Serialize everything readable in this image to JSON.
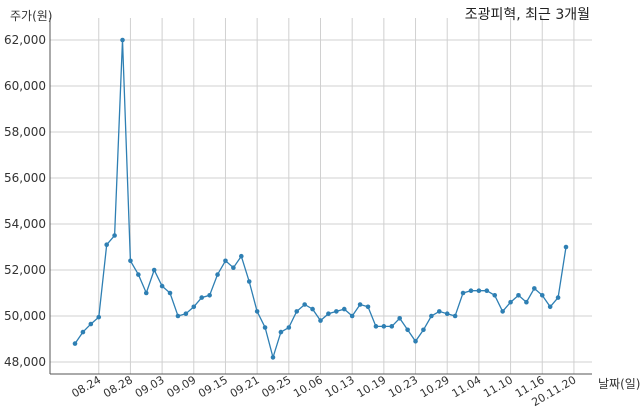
{
  "chart_data": {
    "type": "line",
    "title": "조광피혁, 최근 3개월",
    "ylabel": "주가(원)",
    "xlabel": "날짜(일)",
    "ylim": [
      48000,
      62500
    ],
    "yticks": [
      48000,
      50000,
      52000,
      54000,
      56000,
      58000,
      60000,
      62000
    ],
    "ytick_labels": [
      "48,000",
      "50,000",
      "52,000",
      "54,000",
      "56,000",
      "58,000",
      "60,000",
      "62,000"
    ],
    "grid": true,
    "color": "#2e7fb3",
    "x_tick_labels": [
      "08.24",
      "08.28",
      "09.03",
      "09.09",
      "09.15",
      "09.21",
      "09.25",
      "10.06",
      "10.13",
      "10.19",
      "10.23",
      "10.29",
      "11.04",
      "11.10",
      "11.16",
      "20.11.20"
    ],
    "x_tick_index": [
      3,
      7,
      11,
      15,
      19,
      23,
      27,
      31,
      35,
      39,
      43,
      47,
      51,
      55,
      59,
      63
    ],
    "series": [
      {
        "values": [
          48800,
          49300,
          49650,
          49950,
          53100,
          53500,
          62000,
          52400,
          51800,
          51000,
          52000,
          51300,
          51000,
          50000,
          50100,
          50400,
          50800,
          50900,
          51800,
          52400,
          52100,
          52600,
          51500,
          50200,
          49500,
          48200,
          49300,
          49500,
          50200,
          50500,
          50300,
          49800,
          50100,
          50200,
          50300,
          50000,
          50500,
          50400,
          49550,
          49550,
          49550,
          49900,
          49400,
          48900,
          49400,
          50000,
          50200,
          50100,
          50000,
          51000,
          51100,
          51100,
          51100,
          50900,
          50200,
          50600,
          50900,
          50600,
          51200,
          50900,
          50400,
          50800,
          53000
        ]
      }
    ]
  }
}
